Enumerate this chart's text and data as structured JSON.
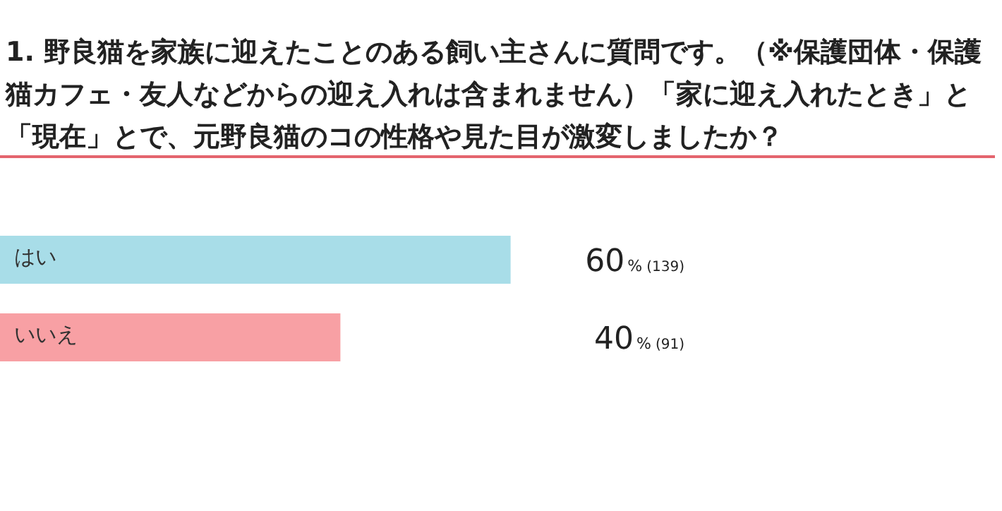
{
  "chart_data": {
    "type": "bar",
    "orientation": "horizontal",
    "title": "1. 野良猫を家族に迎えたことのある飼い主さんに質問です。（※保護団体・保護猫カフェ・友人などからの迎え入れは含まれません）「家に迎え入れたとき」と「現在」とで、元野良猫のコの性格や見た目が激変しましたか？",
    "categories": [
      "はい",
      "いいえ"
    ],
    "values": [
      60,
      40
    ],
    "colors": [
      "#a8dde8",
      "#f8a0a4"
    ],
    "value_labels": [
      "60% (139)",
      "40% (91)"
    ]
  }
}
